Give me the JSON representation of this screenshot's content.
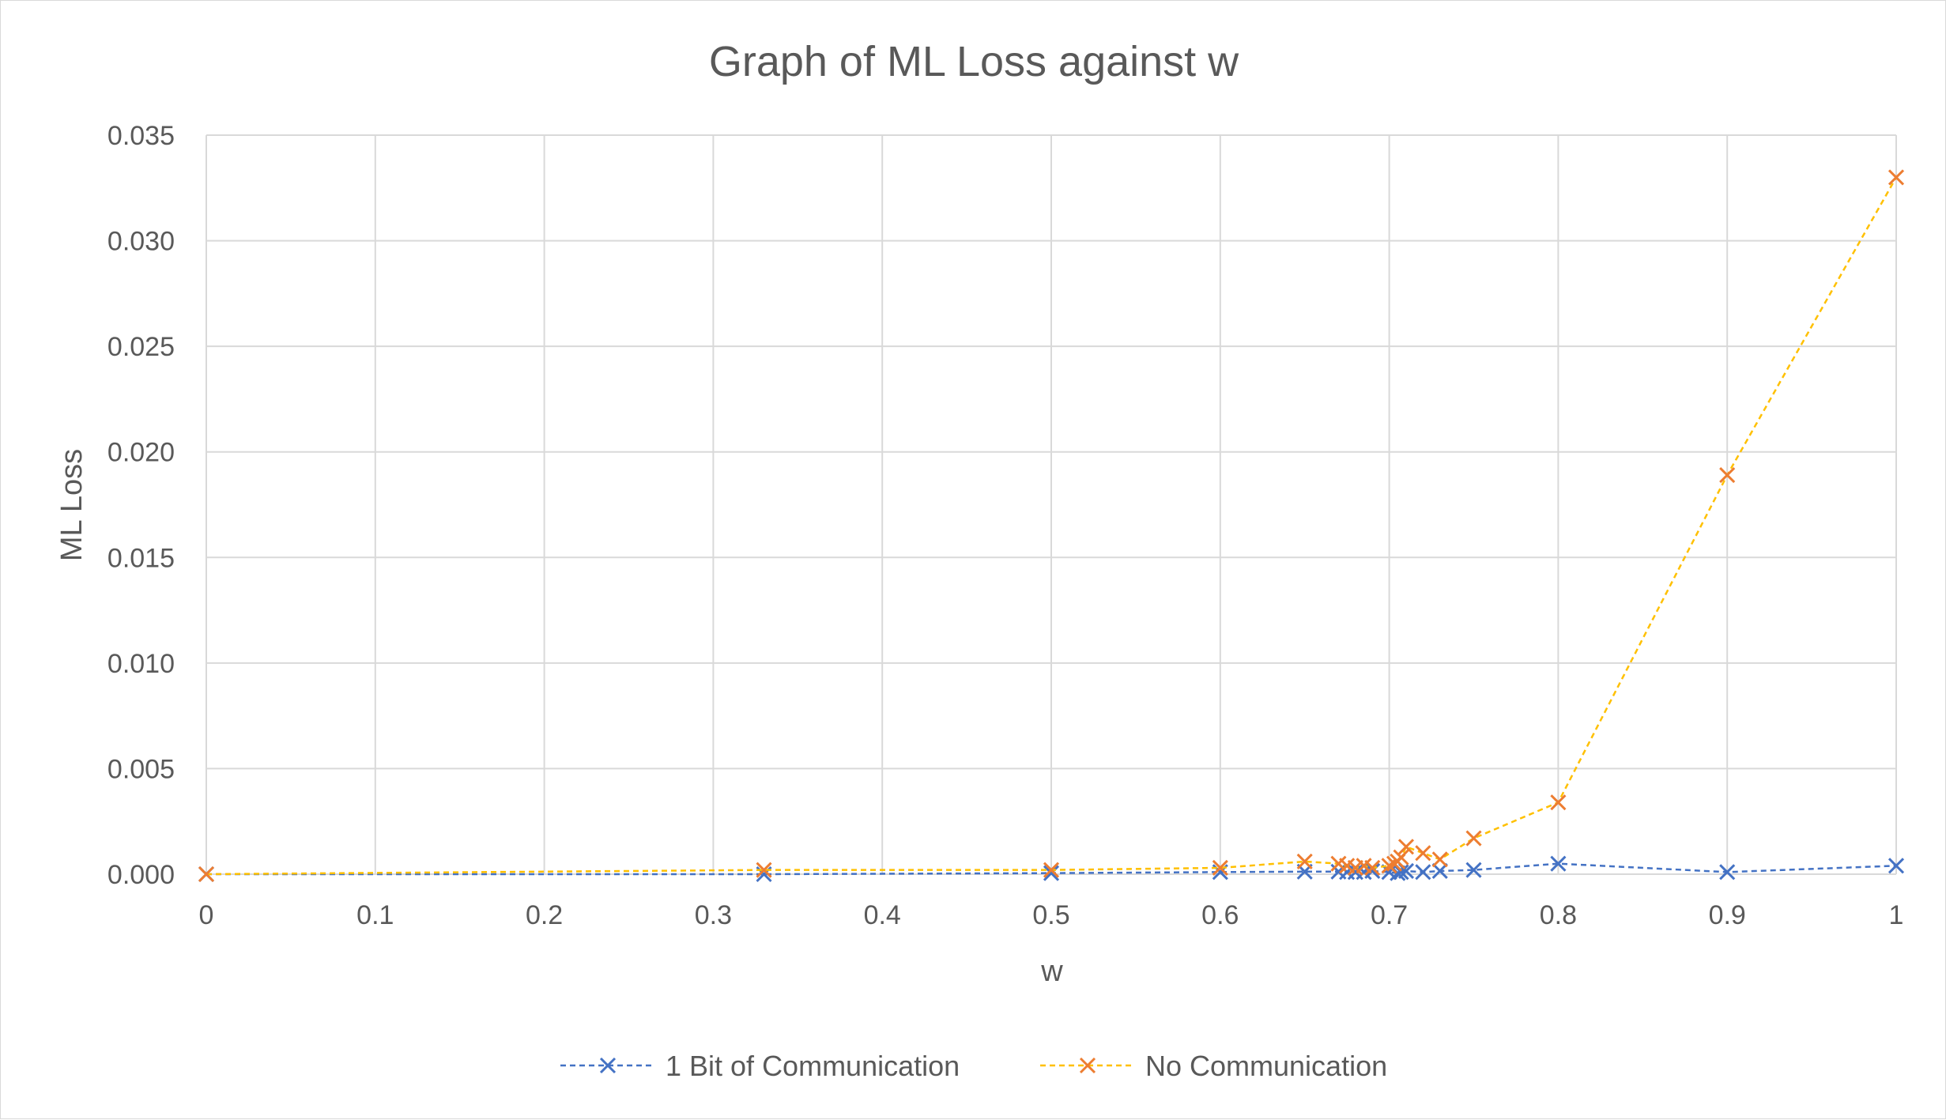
{
  "chart_data": {
    "type": "scatter",
    "title": "Graph of ML Loss against w",
    "xlabel": "w",
    "ylabel": "ML Loss",
    "xlim": [
      0,
      1
    ],
    "ylim": [
      0,
      0.035
    ],
    "x_ticks": [
      "0",
      "0.1",
      "0.2",
      "0.3",
      "0.4",
      "0.5",
      "0.6",
      "0.7",
      "0.8",
      "0.9",
      "1"
    ],
    "y_ticks": [
      "0.000",
      "0.005",
      "0.010",
      "0.015",
      "0.020",
      "0.025",
      "0.030",
      "0.035"
    ],
    "grid": true,
    "legend_position": "bottom",
    "marker": "x",
    "line_style": "dashed",
    "series": [
      {
        "name": "1 Bit of Communication",
        "line_color": "#4472C4",
        "marker_color": "#4472C4",
        "points": [
          [
            0,
            0.0
          ],
          [
            0.33,
            0.0
          ],
          [
            0.5,
            5e-05
          ],
          [
            0.6,
            0.0001
          ],
          [
            0.65,
            0.00012
          ],
          [
            0.67,
            0.00012
          ],
          [
            0.675,
            0.0001
          ],
          [
            0.68,
            0.0001
          ],
          [
            0.685,
            0.0001
          ],
          [
            0.69,
            0.00015
          ],
          [
            0.7,
            0.0001
          ],
          [
            0.705,
            5e-05
          ],
          [
            0.707,
            0.0001
          ],
          [
            0.71,
            0.00015
          ],
          [
            0.72,
            0.0001
          ],
          [
            0.73,
            0.00015
          ],
          [
            0.75,
            0.0002
          ],
          [
            0.8,
            0.0005
          ],
          [
            0.9,
            0.0001
          ],
          [
            1,
            0.0004
          ]
        ]
      },
      {
        "name": "No Communication",
        "line_color": "#FFC000",
        "marker_color": "#ED7D31",
        "points": [
          [
            0,
            0.0
          ],
          [
            0.33,
            0.0002
          ],
          [
            0.5,
            0.0002
          ],
          [
            0.6,
            0.0003
          ],
          [
            0.65,
            0.0006
          ],
          [
            0.67,
            0.0005
          ],
          [
            0.675,
            0.0004
          ],
          [
            0.68,
            0.0003
          ],
          [
            0.685,
            0.0004
          ],
          [
            0.69,
            0.0003
          ],
          [
            0.7,
            0.0004
          ],
          [
            0.703,
            0.0005
          ],
          [
            0.705,
            0.0006
          ],
          [
            0.707,
            0.0008
          ],
          [
            0.71,
            0.0013
          ],
          [
            0.72,
            0.001
          ],
          [
            0.73,
            0.0007
          ],
          [
            0.75,
            0.0017
          ],
          [
            0.8,
            0.0034
          ],
          [
            0.9,
            0.0189
          ],
          [
            1,
            0.033
          ]
        ]
      }
    ]
  }
}
